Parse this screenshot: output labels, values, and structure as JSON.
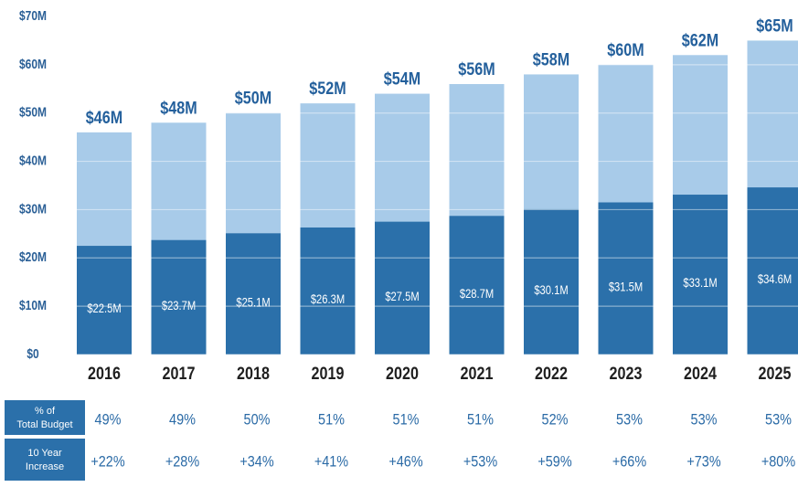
{
  "chart_data": {
    "type": "bar",
    "categories": [
      "2016",
      "2017",
      "2018",
      "2019",
      "2020",
      "2021",
      "2022",
      "2023",
      "2024",
      "2025"
    ],
    "totals": [
      46,
      48,
      50,
      52,
      54,
      56,
      58,
      60,
      62,
      65
    ],
    "totals_labels": [
      "$46M",
      "$48M",
      "$50M",
      "$52M",
      "$54M",
      "$56M",
      "$58M",
      "$60M",
      "$62M",
      "$65M"
    ],
    "totals_color": "#a8cbe9",
    "series": [
      {
        "color": "#2b70aa",
        "values": [
          22.5,
          23.7,
          25.1,
          26.3,
          27.5,
          28.7,
          30.1,
          31.5,
          33.1,
          34.6
        ],
        "value_labels": [
          "$22.5M",
          "$23.7M",
          "$25.1M",
          "$26.3M",
          "$27.5M",
          "$28.7M",
          "$30.1M",
          "$31.5M",
          "$33.1M",
          "$34.6M"
        ]
      }
    ],
    "ylim": [
      0,
      70
    ],
    "yticks": [
      {
        "value": 0,
        "label": "$0"
      },
      {
        "value": 10,
        "label": "$10M"
      },
      {
        "value": 20,
        "label": "$20M"
      },
      {
        "value": 30,
        "label": "$30M"
      },
      {
        "value": 40,
        "label": "$40M"
      },
      {
        "value": 50,
        "label": "$50M"
      },
      {
        "value": 60,
        "label": "$60M"
      },
      {
        "value": 70,
        "label": "$70M"
      }
    ],
    "grid": true,
    "table": [
      {
        "label": "% of Total Budget",
        "cells": [
          "49%",
          "49%",
          "50%",
          "51%",
          "51%",
          "51%",
          "52%",
          "53%",
          "53%",
          "53%"
        ]
      },
      {
        "label": "10 Year Increase",
        "cells": [
          "+22%",
          "+28%",
          "+34%",
          "+41%",
          "+46%",
          "+53%",
          "+59%",
          "+66%",
          "+73%",
          "+80%"
        ]
      }
    ]
  }
}
